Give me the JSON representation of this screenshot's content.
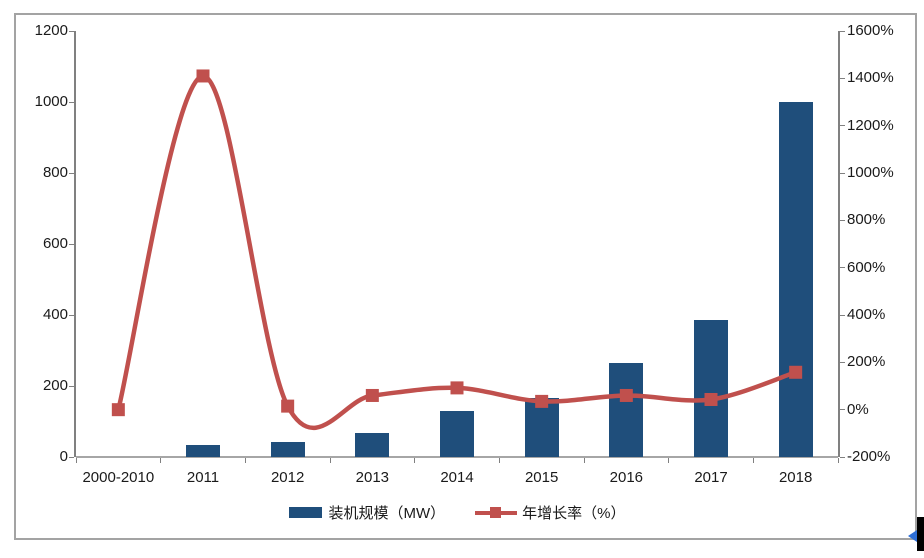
{
  "chart_data": {
    "type": "bar",
    "subtype": "combo-bar-line-dual-axis",
    "title": "",
    "categories": [
      "2000-2010",
      "2011",
      "2012",
      "2013",
      "2014",
      "2015",
      "2016",
      "2017",
      "2018"
    ],
    "series": [
      {
        "name": "装机规模（MW）",
        "type": "bar",
        "axis": "left",
        "color": "#1f4e7b",
        "values": [
          null,
          35,
          42,
          68,
          130,
          165,
          265,
          385,
          1000
        ]
      },
      {
        "name": "年增长率（%）",
        "type": "line",
        "axis": "right",
        "color": "#c0504d",
        "marker": "square",
        "smooth": true,
        "values": [
          0,
          1410,
          15,
          60,
          92,
          35,
          60,
          43,
          158
        ]
      }
    ],
    "left_axis": {
      "min": 0,
      "max": 1200,
      "step": 200,
      "tick_labels": [
        "0",
        "200",
        "400",
        "600",
        "800",
        "1000",
        "1200"
      ]
    },
    "right_axis": {
      "min": -200,
      "max": 1600,
      "step": 200,
      "tick_labels": [
        "-200%",
        "0%",
        "200%",
        "400%",
        "600%",
        "800%",
        "1000%",
        "1200%",
        "1400%",
        "1600%"
      ]
    },
    "legend": {
      "position": "bottom"
    },
    "grid": false,
    "axis_color": "#808080",
    "baseline_color": "#a6a6a6",
    "label_color": "#1a1a1a"
  },
  "frame": {
    "border_color": "#a3a3a3",
    "background": "#ffffff"
  },
  "scrollbar_fragment": {
    "bar_color": "#000000",
    "arrow_color": "#2e6fd6"
  }
}
